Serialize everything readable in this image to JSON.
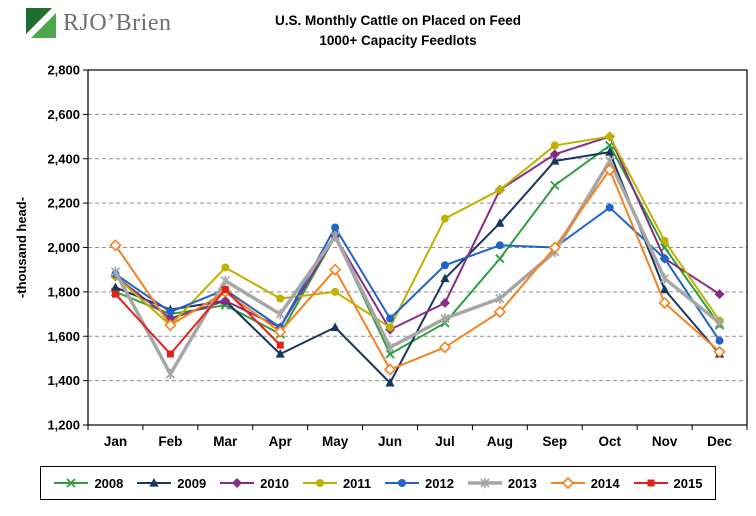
{
  "brand": "RJO’Brien",
  "title_line1": "U.S. Monthly Cattle on Placed on Feed",
  "title_line2": "1000+ Capacity Feedlots",
  "chart_data": {
    "type": "line",
    "title": "U.S. Monthly Cattle on Placed on Feed",
    "subtitle": "1000+ Capacity Feedlots",
    "ylabel": "-thousand head-",
    "ylim": [
      1200,
      2800
    ],
    "ytick_step": 200,
    "grid": "horizontal-dashed",
    "legend_position": "bottom",
    "categories": [
      "Jan",
      "Feb",
      "Mar",
      "Apr",
      "May",
      "Jun",
      "Jul",
      "Aug",
      "Sep",
      "Oct",
      "Nov",
      "Dec"
    ],
    "series": [
      {
        "name": "2008",
        "color": "#2e9e3f",
        "marker": "x",
        "values": [
          1800,
          1700,
          1740,
          1610,
          2050,
          1520,
          1660,
          1950,
          2280,
          2460,
          2000,
          1650
        ]
      },
      {
        "name": "2009",
        "color": "#17375e",
        "marker": "triangle",
        "values": [
          1820,
          1720,
          1760,
          1520,
          1640,
          1390,
          1860,
          2110,
          2390,
          2430,
          1810,
          1520
        ]
      },
      {
        "name": "2010",
        "color": "#862d86",
        "marker": "diamond",
        "values": [
          1870,
          1680,
          1760,
          1640,
          2050,
          1630,
          1750,
          2260,
          2420,
          2500,
          1950,
          1790
        ]
      },
      {
        "name": "2011",
        "color": "#c0b000",
        "marker": "circle",
        "values": [
          1870,
          1650,
          1910,
          1770,
          1800,
          1640,
          2130,
          2260,
          2460,
          2500,
          2030,
          1670
        ]
      },
      {
        "name": "2012",
        "color": "#2064c8",
        "marker": "circle",
        "values": [
          1880,
          1710,
          1810,
          1640,
          2090,
          1680,
          1920,
          2010,
          2000,
          2180,
          1950,
          1580
        ]
      },
      {
        "name": "2013",
        "color": "#a6a6a6",
        "marker": "star",
        "line_width": 3.5,
        "values": [
          1890,
          1430,
          1850,
          1700,
          2050,
          1550,
          1680,
          1770,
          1980,
          2390,
          1860,
          1660
        ]
      },
      {
        "name": "2014",
        "color": "#f58220",
        "marker": "open-diamond",
        "values": [
          2010,
          1650,
          1800,
          1620,
          1900,
          1450,
          1550,
          1710,
          2000,
          2350,
          1750,
          1530
        ]
      },
      {
        "name": "2015",
        "color": "#e32119",
        "marker": "square",
        "values": [
          1790,
          1520,
          1810,
          1560,
          null,
          null,
          null,
          null,
          null,
          null,
          null,
          null
        ]
      }
    ]
  }
}
